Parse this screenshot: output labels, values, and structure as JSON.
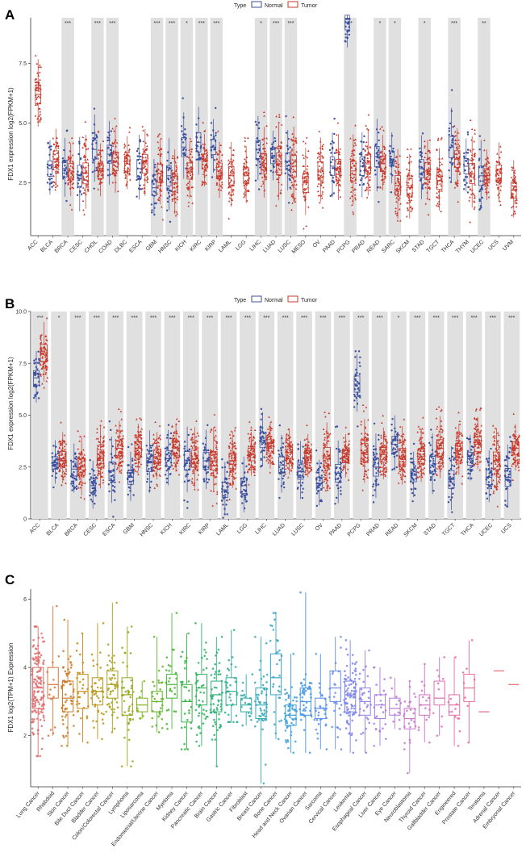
{
  "colors": {
    "normal": "#3b4f9e",
    "tumor": "#c8382a",
    "band": "#e0e0e0"
  },
  "chart_data": [
    {
      "panel": "A",
      "type": "box",
      "ylabel": "FDX1 expression log2(FPKM+1)",
      "ylim": [
        0.3,
        9.4
      ],
      "yticks": [
        2.5,
        5.0,
        7.5
      ],
      "ytick_labels": [
        "2.5",
        "5.0",
        "7.5"
      ],
      "legend": {
        "title": "Type",
        "items": [
          "Normal",
          "Tumor"
        ],
        "position": "top-center"
      },
      "categories": [
        "ACC",
        "BLCA",
        "BRCA",
        "CESC",
        "CHOL",
        "COAD",
        "DLBC",
        "ESCA",
        "GBM",
        "HNSC",
        "KICH",
        "KIRC",
        "KIRP",
        "LAML",
        "LGG",
        "LIHC",
        "LUAD",
        "LUSC",
        "MESO",
        "OV",
        "PAAD",
        "PCPG",
        "PRAD",
        "READ",
        "SARC",
        "SKCM",
        "STAD",
        "TGCT",
        "THCA",
        "THYM",
        "UCEC",
        "UCS",
        "UVM"
      ],
      "significance": [
        "",
        "",
        "***",
        "",
        "***",
        "***",
        "",
        "",
        "***",
        "***",
        "*",
        "***",
        "***",
        "",
        "",
        "*",
        "***",
        "***",
        "",
        "",
        "",
        "**",
        "",
        "*",
        "*",
        "",
        "*",
        "",
        "***",
        "",
        "**",
        "",
        ""
      ],
      "series": [
        {
          "name": "Normal",
          "median": [
            null,
            3.1,
            3.1,
            2.8,
            3.9,
            3.7,
            null,
            3.1,
            2.3,
            2.8,
            4.0,
            4.2,
            4.0,
            null,
            null,
            3.9,
            3.6,
            3.4,
            null,
            null,
            3.2,
            9.2,
            3.2,
            3.6,
            3.5,
            null,
            3.1,
            null,
            4.0,
            3.2,
            2.8,
            null,
            null
          ]
        },
        {
          "name": "Tumor",
          "median": [
            6.2,
            3.5,
            3.0,
            2.9,
            3.0,
            3.4,
            3.3,
            3.3,
            2.9,
            2.5,
            3.0,
            3.4,
            3.0,
            2.8,
            2.8,
            3.3,
            3.3,
            3.2,
            2.5,
            3.0,
            3.1,
            3.0,
            3.3,
            3.3,
            2.4,
            2.3,
            3.0,
            2.6,
            3.5,
            2.9,
            2.8,
            2.9,
            2.2
          ]
        }
      ]
    },
    {
      "panel": "B",
      "type": "box",
      "ylabel": "FDX1 expression log2(FPKM+1)",
      "ylim": [
        0,
        10
      ],
      "yticks": [
        0,
        2.5,
        5.0,
        7.5,
        10.0
      ],
      "ytick_labels": [
        "0",
        "2.5",
        "5.0",
        "7.5",
        "10.0"
      ],
      "legend": {
        "title": "Type",
        "items": [
          "Normal",
          "Tumor"
        ],
        "position": "top-center"
      },
      "categories": [
        "ACC",
        "BLCA",
        "BRCA",
        "CESC",
        "ESCA",
        "GBM",
        "HNSC",
        "KICH",
        "KIRC",
        "KIRP",
        "LAML",
        "LGG",
        "LIHC",
        "LUAD",
        "LUSC",
        "OV",
        "PAAD",
        "PCPG",
        "PRAD",
        "READ",
        "SKCM",
        "STAD",
        "TGCT",
        "THCA",
        "UCEC",
        "UCS"
      ],
      "significance": [
        "***",
        "*",
        "***",
        "***",
        "***",
        "***",
        "***",
        "***",
        "***",
        "***",
        "***",
        "***",
        "***",
        "***",
        "***",
        "***",
        "***",
        "***",
        "***",
        "*",
        "***",
        "***",
        "***",
        "***",
        "***",
        "***"
      ],
      "series": [
        {
          "name": "Normal",
          "median": [
            6.8,
            2.7,
            2.4,
            1.6,
            2.3,
            2.0,
            2.7,
            2.9,
            2.8,
            2.8,
            1.4,
            1.6,
            3.8,
            2.6,
            2.3,
            1.7,
            2.2,
            6.5,
            2.5,
            3.6,
            2.1,
            2.6,
            1.9,
            2.9,
            2.0,
            2.0
          ]
        },
        {
          "name": "Tumor",
          "median": [
            8.0,
            2.9,
            2.5,
            2.9,
            3.4,
            3.4,
            3.0,
            3.4,
            2.9,
            2.8,
            2.8,
            3.1,
            3.5,
            3.2,
            3.0,
            3.0,
            3.0,
            3.2,
            3.1,
            3.0,
            3.0,
            3.4,
            3.3,
            3.6,
            2.8,
            3.4
          ]
        }
      ]
    },
    {
      "panel": "C",
      "type": "box",
      "ylabel": "FDX1 log2(TPM+1) Expression",
      "ylim": [
        0.5,
        6.3
      ],
      "yticks": [
        2,
        4,
        6
      ],
      "ytick_labels": [
        "2",
        "4",
        "6"
      ],
      "categories": [
        "Lung Cancer",
        "Rhabdoid",
        "Skin Cancer",
        "Bile Duct Cancer",
        "Bladder Cancer",
        "Colon/Colorectal Cancer",
        "Lymphoma",
        "Liposarcoma",
        "Endometrial/Uterine Cancer",
        "Myeloma",
        "Kidney Cancer",
        "Pancreatic Cancer",
        "Brain Cancer",
        "Gastric Cancer",
        "Fibroblast",
        "Breast Cancer",
        "Bone Cancer",
        "Head and Neck Cancer",
        "Ovarian Cancer",
        "Sarcoma",
        "Cervical Cancer",
        "Leukemia",
        "Esophageal Cancer",
        "Liver Cancer",
        "Eye Cancer",
        "Neuroblastoma",
        "Thyroid Cancer",
        "Gallbladder Cancer",
        "Engineered",
        "Prostate Cancer",
        "Teratoma",
        "Adrenal Cancer",
        "Embryonal Cancer"
      ],
      "median": [
        3.4,
        3.5,
        3.1,
        3.3,
        3.3,
        3.5,
        3.2,
        2.9,
        3.0,
        3.5,
        3.0,
        3.4,
        3.2,
        3.3,
        2.9,
        2.9,
        3.7,
        2.6,
        3.0,
        2.8,
        3.4,
        3.2,
        3.0,
        2.9,
        2.8,
        2.5,
        2.9,
        3.1,
        2.9,
        3.4,
        2.7,
        3.9,
        3.5
      ],
      "q1": [
        2.8,
        3.1,
        2.7,
        2.8,
        2.9,
        3.1,
        2.6,
        2.7,
        2.7,
        3.1,
        2.4,
        2.9,
        2.7,
        2.9,
        2.7,
        2.5,
        3.2,
        2.3,
        2.6,
        2.5,
        3.0,
        2.7,
        2.6,
        2.5,
        2.6,
        2.2,
        2.6,
        2.9,
        2.6,
        3.0,
        2.7,
        3.9,
        3.5
      ],
      "q3": [
        4.0,
        4.0,
        3.6,
        3.8,
        3.7,
        3.9,
        3.7,
        3.1,
        3.3,
        3.8,
        3.5,
        3.8,
        3.6,
        3.7,
        3.1,
        3.4,
        4.4,
        2.9,
        3.4,
        3.1,
        3.9,
        3.6,
        3.4,
        3.2,
        3.1,
        2.8,
        3.2,
        3.6,
        3.2,
        3.8,
        2.7,
        3.9,
        3.5
      ],
      "min": [
        1.4,
        2.0,
        1.7,
        1.8,
        1.9,
        2.1,
        1.1,
        2.5,
        2.1,
        2.2,
        1.6,
        1.7,
        1.1,
        2.4,
        2.3,
        0.6,
        1.9,
        1.5,
        1.5,
        1.6,
        1.6,
        1.5,
        1.5,
        1.7,
        2.2,
        0.9,
        1.8,
        2.0,
        1.7,
        1.8,
        2.7,
        3.9,
        3.5
      ],
      "max": [
        5.2,
        5.8,
        5.4,
        5.0,
        5.3,
        5.9,
        5.2,
        3.6,
        4.9,
        5.6,
        5.0,
        5.3,
        4.9,
        5.1,
        3.8,
        4.9,
        5.6,
        4.4,
        6.2,
        4.4,
        4.9,
        4.8,
        4.5,
        4.0,
        3.7,
        3.6,
        4.1,
        4.3,
        4.3,
        4.8,
        2.7,
        3.9,
        3.5
      ],
      "palette": [
        "#e06c6c",
        "#d8743b",
        "#cc7a24",
        "#c78a16",
        "#b89418",
        "#a8a01c",
        "#94a81a",
        "#7cb01c",
        "#62b428",
        "#47b534",
        "#35b446",
        "#2fb25e",
        "#2db078",
        "#2eae90",
        "#30aca7",
        "#31a8bb",
        "#36a4cc",
        "#3c9eda",
        "#4696e4",
        "#5590ea",
        "#688aec",
        "#7c84ec",
        "#9180e8",
        "#a57ce2",
        "#b878da",
        "#c874d0",
        "#d471c4",
        "#de6eb5",
        "#e36ca5",
        "#e66c94",
        "#e66c84",
        "#e46c76",
        "#e26c6c"
      ]
    }
  ]
}
